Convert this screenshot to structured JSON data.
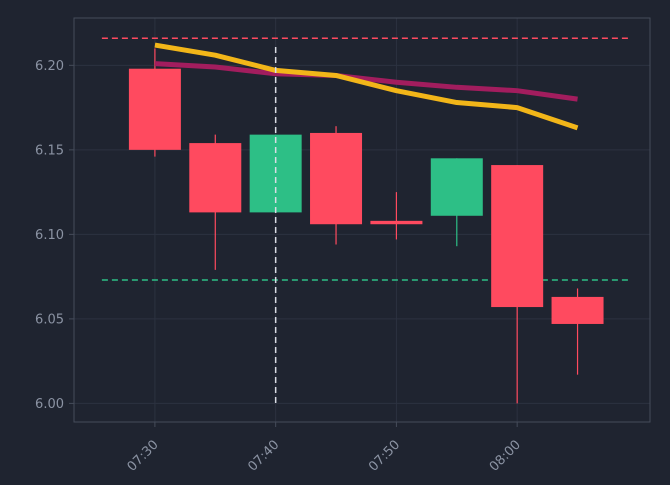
{
  "chart_data": {
    "type": "candlestick",
    "x": [
      "07:30",
      "07:35",
      "07:40",
      "07:45",
      "07:50",
      "07:55",
      "08:00",
      "08:05"
    ],
    "candles": [
      {
        "time": "07:30",
        "open": 6.198,
        "high": 6.21,
        "low": 6.146,
        "close": 6.15
      },
      {
        "time": "07:35",
        "open": 6.154,
        "high": 6.159,
        "low": 6.079,
        "close": 6.113
      },
      {
        "time": "07:40",
        "open": 6.113,
        "high": 6.159,
        "low": 6.113,
        "close": 6.159
      },
      {
        "time": "07:45",
        "open": 6.16,
        "high": 6.164,
        "low": 6.094,
        "close": 6.106
      },
      {
        "time": "07:50",
        "open": 6.108,
        "high": 6.125,
        "low": 6.097,
        "close": 6.106
      },
      {
        "time": "07:55",
        "open": 6.111,
        "high": 6.145,
        "low": 6.093,
        "close": 6.145
      },
      {
        "time": "08:00",
        "open": 6.141,
        "high": 6.141,
        "low": 6.0,
        "close": 6.057
      },
      {
        "time": "08:05",
        "open": 6.063,
        "high": 6.068,
        "low": 6.017,
        "close": 6.047
      }
    ],
    "series": [
      {
        "values": [
          6.212,
          6.206,
          6.197,
          6.194,
          6.185,
          6.178,
          6.175,
          6.163
        ]
      },
      {
        "values": [
          6.201,
          6.199,
          6.195,
          6.194,
          6.19,
          6.187,
          6.185,
          6.18
        ]
      }
    ],
    "hlines": [
      6.216,
      6.073
    ],
    "vline": "07:40",
    "x_ticks": [
      "07:30",
      "07:40",
      "07:50",
      "08:00"
    ],
    "y_ticks": [
      "6.00",
      "6.05",
      "6.10",
      "6.15",
      "6.20"
    ],
    "ylim": [
      5.989,
      6.228
    ],
    "xlim_minutes": [
      -6.7,
      41
    ],
    "grid": true,
    "colors": {
      "background": "#1f2430",
      "up": "#2dbf86",
      "down": "#ff4a5f",
      "line_fast": "#f2b619",
      "line_slow": "#a21d5e",
      "hline_top": "#ff4a5f",
      "hline_bottom": "#2dbf86",
      "vline": "#d9dde5",
      "grid": "#2c3240",
      "axis": "#454c5a",
      "tick_text": "#8b93a3"
    }
  }
}
